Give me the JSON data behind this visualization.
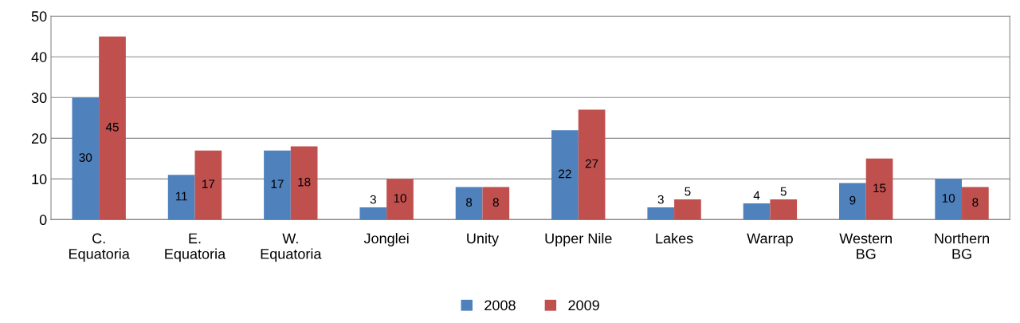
{
  "chart_data": {
    "type": "bar",
    "categories": [
      "C.\nEquatoria",
      "E.\nEquatoria",
      "W.\nEquatoria",
      "Jonglei",
      "Unity",
      "Upper Nile",
      "Lakes",
      "Warrap",
      "Western\nBG",
      "Northern\nBG"
    ],
    "series": [
      {
        "name": "2008",
        "color": "#4f81bd",
        "values": [
          30,
          11,
          17,
          3,
          8,
          22,
          3,
          4,
          9,
          10
        ]
      },
      {
        "name": "2009",
        "color": "#c0504d",
        "values": [
          45,
          17,
          18,
          10,
          8,
          27,
          5,
          5,
          15,
          8
        ]
      }
    ],
    "ylim": [
      0,
      50
    ],
    "yticks": [
      0,
      10,
      20,
      30,
      40,
      50
    ],
    "grid": "y",
    "legend": "bottom",
    "data_labels": true
  }
}
